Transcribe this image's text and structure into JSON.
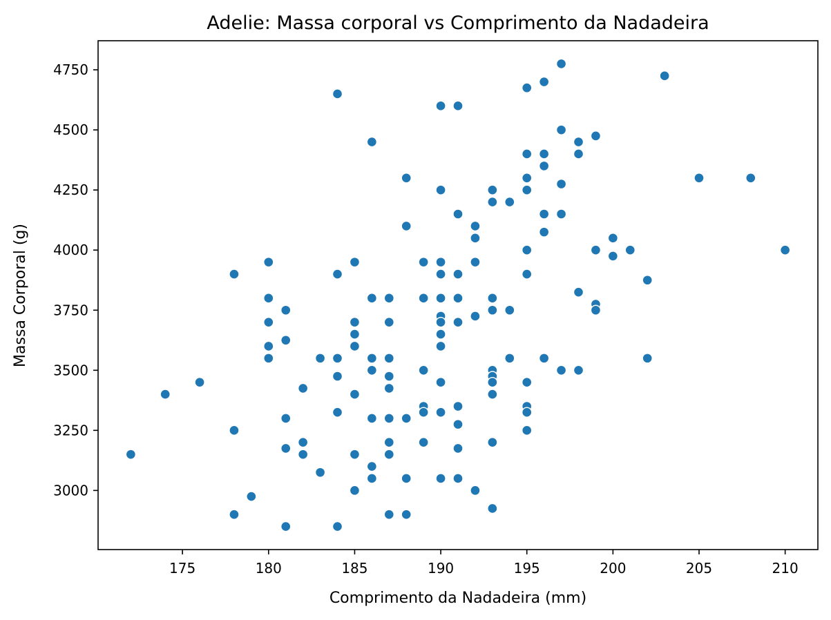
{
  "chart_data": {
    "type": "scatter",
    "title": "Adelie: Massa corporal vs Comprimento da Nadadeira",
    "xlabel": "Comprimento da Nadadeira (mm)",
    "ylabel": "Massa Corporal (g)",
    "xlim": [
      170.1,
      211.9
    ],
    "ylim": [
      2754,
      4871
    ],
    "xticks": [
      175,
      180,
      185,
      190,
      195,
      200,
      205,
      210
    ],
    "yticks": [
      3000,
      3250,
      3500,
      3750,
      4000,
      4250,
      4500,
      4750
    ],
    "xtick_labels": [
      "175",
      "180",
      "185",
      "190",
      "195",
      "200",
      "205",
      "210"
    ],
    "ytick_labels": [
      "3000",
      "3250",
      "3500",
      "3750",
      "4000",
      "4250",
      "4500",
      "4750"
    ],
    "grid": false,
    "color": "#1f77b4",
    "points": [
      [
        172,
        3150
      ],
      [
        174,
        3400
      ],
      [
        176,
        3450
      ],
      [
        178,
        3900
      ],
      [
        178,
        3250
      ],
      [
        178,
        2900
      ],
      [
        179,
        2975
      ],
      [
        180,
        3950
      ],
      [
        180,
        3800
      ],
      [
        180,
        3700
      ],
      [
        180,
        3600
      ],
      [
        180,
        3550
      ],
      [
        181,
        3750
      ],
      [
        181,
        3625
      ],
      [
        181,
        3300
      ],
      [
        181,
        3175
      ],
      [
        181,
        2850
      ],
      [
        182,
        3425
      ],
      [
        182,
        3200
      ],
      [
        182,
        3150
      ],
      [
        183,
        3550
      ],
      [
        183,
        3075
      ],
      [
        184,
        4650
      ],
      [
        184,
        3900
      ],
      [
        184,
        3550
      ],
      [
        184,
        3475
      ],
      [
        184,
        3325
      ],
      [
        184,
        2850
      ],
      [
        185,
        3950
      ],
      [
        185,
        3700
      ],
      [
        185,
        3650
      ],
      [
        185,
        3600
      ],
      [
        185,
        3400
      ],
      [
        185,
        3150
      ],
      [
        185,
        3000
      ],
      [
        186,
        4450
      ],
      [
        186,
        3800
      ],
      [
        186,
        3550
      ],
      [
        186,
        3500
      ],
      [
        186,
        3300
      ],
      [
        186,
        3100
      ],
      [
        186,
        3050
      ],
      [
        187,
        3800
      ],
      [
        187,
        3700
      ],
      [
        187,
        3550
      ],
      [
        187,
        3475
      ],
      [
        187,
        3425
      ],
      [
        187,
        3300
      ],
      [
        187,
        3200
      ],
      [
        187,
        3150
      ],
      [
        187,
        2900
      ],
      [
        188,
        4300
      ],
      [
        188,
        4100
      ],
      [
        188,
        3300
      ],
      [
        188,
        3050
      ],
      [
        188,
        2900
      ],
      [
        189,
        3950
      ],
      [
        189,
        3800
      ],
      [
        189,
        3500
      ],
      [
        189,
        3350
      ],
      [
        189,
        3325
      ],
      [
        189,
        3200
      ],
      [
        190,
        4600
      ],
      [
        190,
        4250
      ],
      [
        190,
        3950
      ],
      [
        190,
        3900
      ],
      [
        190,
        3800
      ],
      [
        190,
        3725
      ],
      [
        190,
        3700
      ],
      [
        190,
        3650
      ],
      [
        190,
        3600
      ],
      [
        190,
        3450
      ],
      [
        190,
        3325
      ],
      [
        190,
        3050
      ],
      [
        191,
        4600
      ],
      [
        191,
        4150
      ],
      [
        191,
        3900
      ],
      [
        191,
        3800
      ],
      [
        191,
        3700
      ],
      [
        191,
        3350
      ],
      [
        191,
        3275
      ],
      [
        191,
        3175
      ],
      [
        191,
        3050
      ],
      [
        192,
        4100
      ],
      [
        192,
        4050
      ],
      [
        192,
        3950
      ],
      [
        192,
        3725
      ],
      [
        192,
        3000
      ],
      [
        193,
        4250
      ],
      [
        193,
        4200
      ],
      [
        193,
        3800
      ],
      [
        193,
        3750
      ],
      [
        193,
        3500
      ],
      [
        193,
        3475
      ],
      [
        193,
        3450
      ],
      [
        193,
        3400
      ],
      [
        193,
        3200
      ],
      [
        193,
        2925
      ],
      [
        194,
        4200
      ],
      [
        194,
        3750
      ],
      [
        194,
        3550
      ],
      [
        195,
        4675
      ],
      [
        195,
        4400
      ],
      [
        195,
        4300
      ],
      [
        195,
        4250
      ],
      [
        195,
        4000
      ],
      [
        195,
        3900
      ],
      [
        195,
        3450
      ],
      [
        195,
        3350
      ],
      [
        195,
        3325
      ],
      [
        195,
        3250
      ],
      [
        196,
        4700
      ],
      [
        196,
        4400
      ],
      [
        196,
        4350
      ],
      [
        196,
        4150
      ],
      [
        196,
        4075
      ],
      [
        196,
        3550
      ],
      [
        197,
        4775
      ],
      [
        197,
        4500
      ],
      [
        197,
        4275
      ],
      [
        197,
        4150
      ],
      [
        197,
        3500
      ],
      [
        198,
        4450
      ],
      [
        198,
        4400
      ],
      [
        198,
        3825
      ],
      [
        198,
        3500
      ],
      [
        199,
        4475
      ],
      [
        199,
        4000
      ],
      [
        199,
        3775
      ],
      [
        199,
        3750
      ],
      [
        200,
        4050
      ],
      [
        200,
        3975
      ],
      [
        201,
        4000
      ],
      [
        202,
        3875
      ],
      [
        202,
        3550
      ],
      [
        203,
        4725
      ],
      [
        205,
        4300
      ],
      [
        208,
        4300
      ],
      [
        210,
        4000
      ]
    ]
  }
}
